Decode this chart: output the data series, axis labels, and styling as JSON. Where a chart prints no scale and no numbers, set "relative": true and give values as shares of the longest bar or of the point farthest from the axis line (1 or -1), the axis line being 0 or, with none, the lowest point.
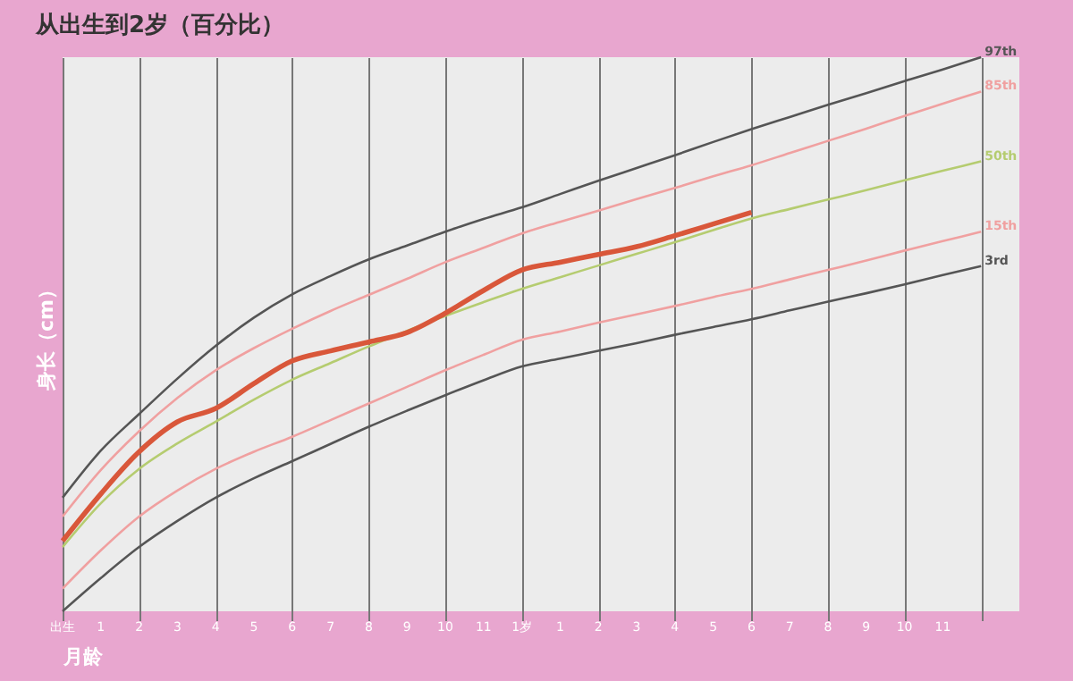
{
  "chart_data": {
    "type": "line",
    "title": "从出生到2岁（百分比）",
    "xlabel": "月龄",
    "ylabel": "身长（cm）",
    "relative": true,
    "grid": "x",
    "line_style": "solid",
    "marker": "none",
    "categories": [
      "出生",
      "1",
      "2",
      "3",
      "4",
      "5",
      "6",
      "7",
      "8",
      "9",
      "10",
      "11",
      "1岁",
      "1",
      "2",
      "3",
      "4",
      "5",
      "6",
      "7",
      "8",
      "9",
      "10",
      "11",
      null
    ],
    "series": [
      {
        "name": "97th",
        "color": "#555555",
        "values": [
          0.205,
          0.29,
          0.356,
          0.42,
          0.479,
          0.53,
          0.572,
          0.605,
          0.635,
          0.66,
          0.685,
          0.708,
          0.729,
          0.753,
          0.777,
          0.8,
          0.823,
          0.847,
          0.87,
          0.892,
          0.914,
          0.935,
          0.957,
          0.978,
          1
        ]
      },
      {
        "name": "85th",
        "color": "#f0a0a0",
        "values": [
          0.171,
          0.255,
          0.325,
          0.385,
          0.435,
          0.475,
          0.51,
          0.542,
          0.571,
          0.6,
          0.63,
          0.656,
          0.682,
          0.703,
          0.723,
          0.744,
          0.764,
          0.785,
          0.805,
          0.827,
          0.849,
          0.871,
          0.894,
          0.916,
          0.938
        ]
      },
      {
        "name": "50th",
        "color": "#b5cc70",
        "values": [
          0.116,
          0.195,
          0.257,
          0.303,
          0.342,
          0.382,
          0.418,
          0.448,
          0.478,
          0.506,
          0.533,
          0.558,
          0.582,
          0.603,
          0.624,
          0.645,
          0.666,
          0.688,
          0.709,
          0.726,
          0.743,
          0.76,
          0.778,
          0.795,
          0.812
        ]
      },
      {
        "name": "15th",
        "color": "#f0a0a0",
        "values": [
          0.041,
          0.11,
          0.171,
          0.218,
          0.257,
          0.288,
          0.315,
          0.345,
          0.375,
          0.405,
          0.435,
          0.463,
          0.49,
          0.505,
          0.521,
          0.536,
          0.551,
          0.567,
          0.582,
          0.599,
          0.616,
          0.633,
          0.651,
          0.668,
          0.685
        ]
      },
      {
        "name": "3rd",
        "color": "#555555",
        "values": [
          0,
          0.06,
          0.116,
          0.163,
          0.205,
          0.24,
          0.271,
          0.302,
          0.333,
          0.362,
          0.39,
          0.417,
          0.442,
          0.456,
          0.47,
          0.484,
          0.499,
          0.513,
          0.527,
          0.543,
          0.559,
          0.574,
          0.59,
          0.607,
          0.623
        ]
      },
      {
        "color": "#d9573a",
        "values": [
          0.127,
          0.212,
          0.288,
          0.342,
          0.366,
          0.411,
          0.452,
          0.47,
          0.486,
          0.503,
          0.538,
          0.579,
          0.616,
          0.63,
          0.644,
          0.658,
          0.678,
          0.699,
          0.72,
          null,
          null,
          null,
          null,
          null,
          null
        ]
      }
    ]
  }
}
